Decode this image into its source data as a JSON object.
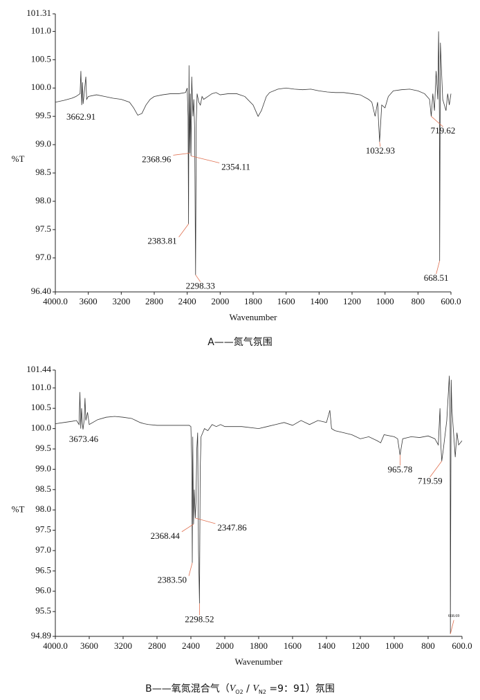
{
  "chart_data": [
    {
      "type": "line",
      "caption": [
        "A——氮气氛围"
      ],
      "xlabel": "Wavenumber",
      "ylabel": "%T",
      "color": "#333333",
      "annotation_color": "#e07050",
      "xlim": [
        4000,
        600
      ],
      "x_scale_break": 2000,
      "x_scale_break_stretch": 2,
      "xticks": [
        {
          "value": 4000,
          "label": "4000.0"
        },
        3600,
        3200,
        2800,
        2400,
        2000,
        1800,
        1600,
        1400,
        1200,
        1000,
        800,
        {
          "value": 600,
          "label": "600.0"
        }
      ],
      "ylim": [
        96.4,
        101.31
      ],
      "yticks": [
        101.31,
        {
          "value": 101,
          "label": "101.0"
        },
        100.5,
        {
          "value": 100,
          "label": "100.0"
        },
        99.5,
        {
          "value": 99,
          "label": "99.0"
        },
        98.5,
        {
          "value": 98,
          "label": "98.0"
        },
        97.5,
        {
          "value": 97,
          "label": "97.0"
        },
        {
          "value": 96.4,
          "label": "96.40"
        }
      ],
      "x": [
        4000,
        3900,
        3800,
        3750,
        3700,
        3690,
        3680,
        3670,
        3662.91,
        3650,
        3630,
        3620,
        3600,
        3500,
        3400,
        3300,
        3200,
        3100,
        3050,
        3000,
        2950,
        2900,
        2850,
        2800,
        2700,
        2600,
        2500,
        2420,
        2400,
        2390,
        2383.81,
        2378,
        2372,
        2368.96,
        2362,
        2354.11,
        2345,
        2330,
        2320,
        2310,
        2298.33,
        2290,
        2280,
        2260,
        2240,
        2220,
        2200,
        2150,
        2100,
        2050,
        2000,
        1950,
        1900,
        1850,
        1800,
        1770,
        1750,
        1720,
        1700,
        1650,
        1600,
        1550,
        1500,
        1450,
        1400,
        1350,
        1300,
        1250,
        1200,
        1150,
        1100,
        1080,
        1060,
        1045,
        1032.93,
        1020,
        1000,
        980,
        950,
        900,
        850,
        800,
        760,
        730,
        719.62,
        710,
        700,
        690,
        680,
        675,
        670,
        668.51,
        664,
        660,
        650,
        640,
        630,
        620,
        610,
        600
      ],
      "values": [
        99.75,
        99.78,
        99.82,
        99.85,
        99.9,
        100.3,
        99.7,
        100.1,
        99.72,
        99.9,
        100.2,
        99.8,
        99.85,
        99.88,
        99.85,
        99.82,
        99.8,
        99.75,
        99.65,
        99.52,
        99.55,
        99.7,
        99.8,
        99.85,
        99.88,
        99.9,
        99.9,
        99.92,
        100.0,
        99.5,
        97.6,
        100.4,
        99.2,
        98.85,
        99.9,
        98.8,
        100.2,
        99.5,
        99.8,
        99.3,
        96.7,
        99.4,
        99.9,
        99.75,
        99.7,
        99.85,
        99.8,
        99.85,
        99.9,
        99.92,
        99.88,
        99.9,
        99.9,
        99.85,
        99.7,
        99.5,
        99.6,
        99.85,
        99.92,
        99.98,
        100.0,
        99.98,
        99.97,
        99.98,
        99.95,
        99.93,
        99.92,
        99.92,
        99.9,
        99.88,
        99.8,
        99.75,
        99.5,
        99.75,
        99.05,
        99.7,
        99.65,
        99.85,
        99.95,
        99.97,
        99.98,
        99.95,
        99.9,
        99.8,
        99.5,
        99.9,
        99.6,
        100.3,
        99.8,
        101.0,
        99.5,
        96.95,
        100.8,
        100.5,
        99.8,
        99.7,
        99.6,
        99.9,
        99.7,
        99.9
      ],
      "annotations": [
        {
          "label": "3662.91",
          "x": 3662.91,
          "y": 99.72
        },
        {
          "label": "2368.96",
          "x": 2368.96,
          "y": 98.85
        },
        {
          "label": "2354.11",
          "x": 2354.11,
          "y": 98.8
        },
        {
          "label": "2383.81",
          "x": 2383.81,
          "y": 97.6
        },
        {
          "label": "2298.33",
          "x": 2298.33,
          "y": 96.7
        },
        {
          "label": "1032.93",
          "x": 1032.93,
          "y": 99.05
        },
        {
          "label": "719.62",
          "x": 719.62,
          "y": 99.5
        },
        {
          "label": "668.51",
          "x": 668.51,
          "y": 96.95
        }
      ]
    },
    {
      "type": "line",
      "caption": [
        "B——氧氮混合气（",
        "V",
        "O2",
        " / ",
        "V",
        "N2",
        " =9：91）氛围"
      ],
      "xlabel": "Wavenumber",
      "ylabel": "%T",
      "color": "#333333",
      "annotation_color": "#e07050",
      "xlim": [
        4000,
        600
      ],
      "x_scale_break": 2000,
      "x_scale_break_stretch": 2,
      "xticks": [
        {
          "value": 4000,
          "label": "4000.0"
        },
        3600,
        3200,
        2800,
        2400,
        2000,
        1800,
        1600,
        1400,
        1200,
        1000,
        800,
        {
          "value": 600,
          "label": "600.0"
        }
      ],
      "ylim": [
        94.89,
        101.44
      ],
      "yticks": [
        101.44,
        {
          "value": 101,
          "label": "101.0"
        },
        100.5,
        {
          "value": 100,
          "label": "100.0"
        },
        99.5,
        {
          "value": 99,
          "label": "99.0"
        },
        98.5,
        {
          "value": 98,
          "label": "98.0"
        },
        97.5,
        {
          "value": 97,
          "label": "97.0"
        },
        96.5,
        {
          "value": 96,
          "label": "96.0"
        },
        95.5,
        94.89
      ],
      "x": [
        4000,
        3900,
        3800,
        3750,
        3720,
        3710,
        3700,
        3690,
        3680,
        3673.46,
        3660,
        3650,
        3640,
        3620,
        3600,
        3500,
        3400,
        3300,
        3200,
        3100,
        3050,
        3000,
        2950,
        2900,
        2800,
        2700,
        2600,
        2500,
        2420,
        2400,
        2390,
        2383.5,
        2378,
        2372,
        2368.44,
        2360,
        2347.86,
        2340,
        2330,
        2320,
        2310,
        2298.52,
        2290,
        2280,
        2260,
        2240,
        2200,
        2150,
        2100,
        2050,
        2000,
        1900,
        1800,
        1750,
        1700,
        1650,
        1600,
        1550,
        1500,
        1450,
        1400,
        1380,
        1370,
        1350,
        1300,
        1250,
        1200,
        1150,
        1100,
        1080,
        1060,
        1000,
        980,
        965.78,
        950,
        900,
        850,
        800,
        760,
        740,
        730,
        725,
        719.59,
        710,
        690,
        675,
        670,
        668.69,
        664,
        660,
        650,
        640,
        630,
        620,
        600
      ],
      "values": [
        100.12,
        100.15,
        100.18,
        100.2,
        100.1,
        100.9,
        100.0,
        100.5,
        100.1,
        99.98,
        100.2,
        100.75,
        100.2,
        100.4,
        100.1,
        100.22,
        100.28,
        100.3,
        100.28,
        100.25,
        100.2,
        100.15,
        100.12,
        100.1,
        100.08,
        100.08,
        100.08,
        100.08,
        100.08,
        100.05,
        99.2,
        96.7,
        99.8,
        98.3,
        97.65,
        98.5,
        97.8,
        98.2,
        99.5,
        99.9,
        97.0,
        95.7,
        99.0,
        99.8,
        99.9,
        100.0,
        99.95,
        100.1,
        100.05,
        100.1,
        100.05,
        100.05,
        100.0,
        100.05,
        100.1,
        100.15,
        100.08,
        100.2,
        100.1,
        100.2,
        100.15,
        100.45,
        100.0,
        99.95,
        99.9,
        99.85,
        99.75,
        99.8,
        99.7,
        99.65,
        99.85,
        99.8,
        99.75,
        99.35,
        99.75,
        99.8,
        99.78,
        99.82,
        99.75,
        99.6,
        100.5,
        99.6,
        99.2,
        99.5,
        100.2,
        101.3,
        100.0,
        94.95,
        101.2,
        100.5,
        99.9,
        99.3,
        99.9,
        99.6,
        99.7
      ],
      "annotations": [
        {
          "label": "3673.46",
          "x": 3673.46,
          "y": 99.98
        },
        {
          "label": "2368.44",
          "x": 2368.44,
          "y": 97.65
        },
        {
          "label": "2347.86",
          "x": 2347.86,
          "y": 97.8
        },
        {
          "label": "2383.50",
          "x": 2383.5,
          "y": 96.7
        },
        {
          "label": "2298.52",
          "x": 2298.52,
          "y": 95.7
        },
        {
          "label": "965.78",
          "x": 965.78,
          "y": 99.35
        },
        {
          "label": "719.59",
          "x": 719.59,
          "y": 99.2
        },
        {
          "label": "668.69",
          "x": 668.69,
          "y": 94.95
        }
      ]
    }
  ]
}
